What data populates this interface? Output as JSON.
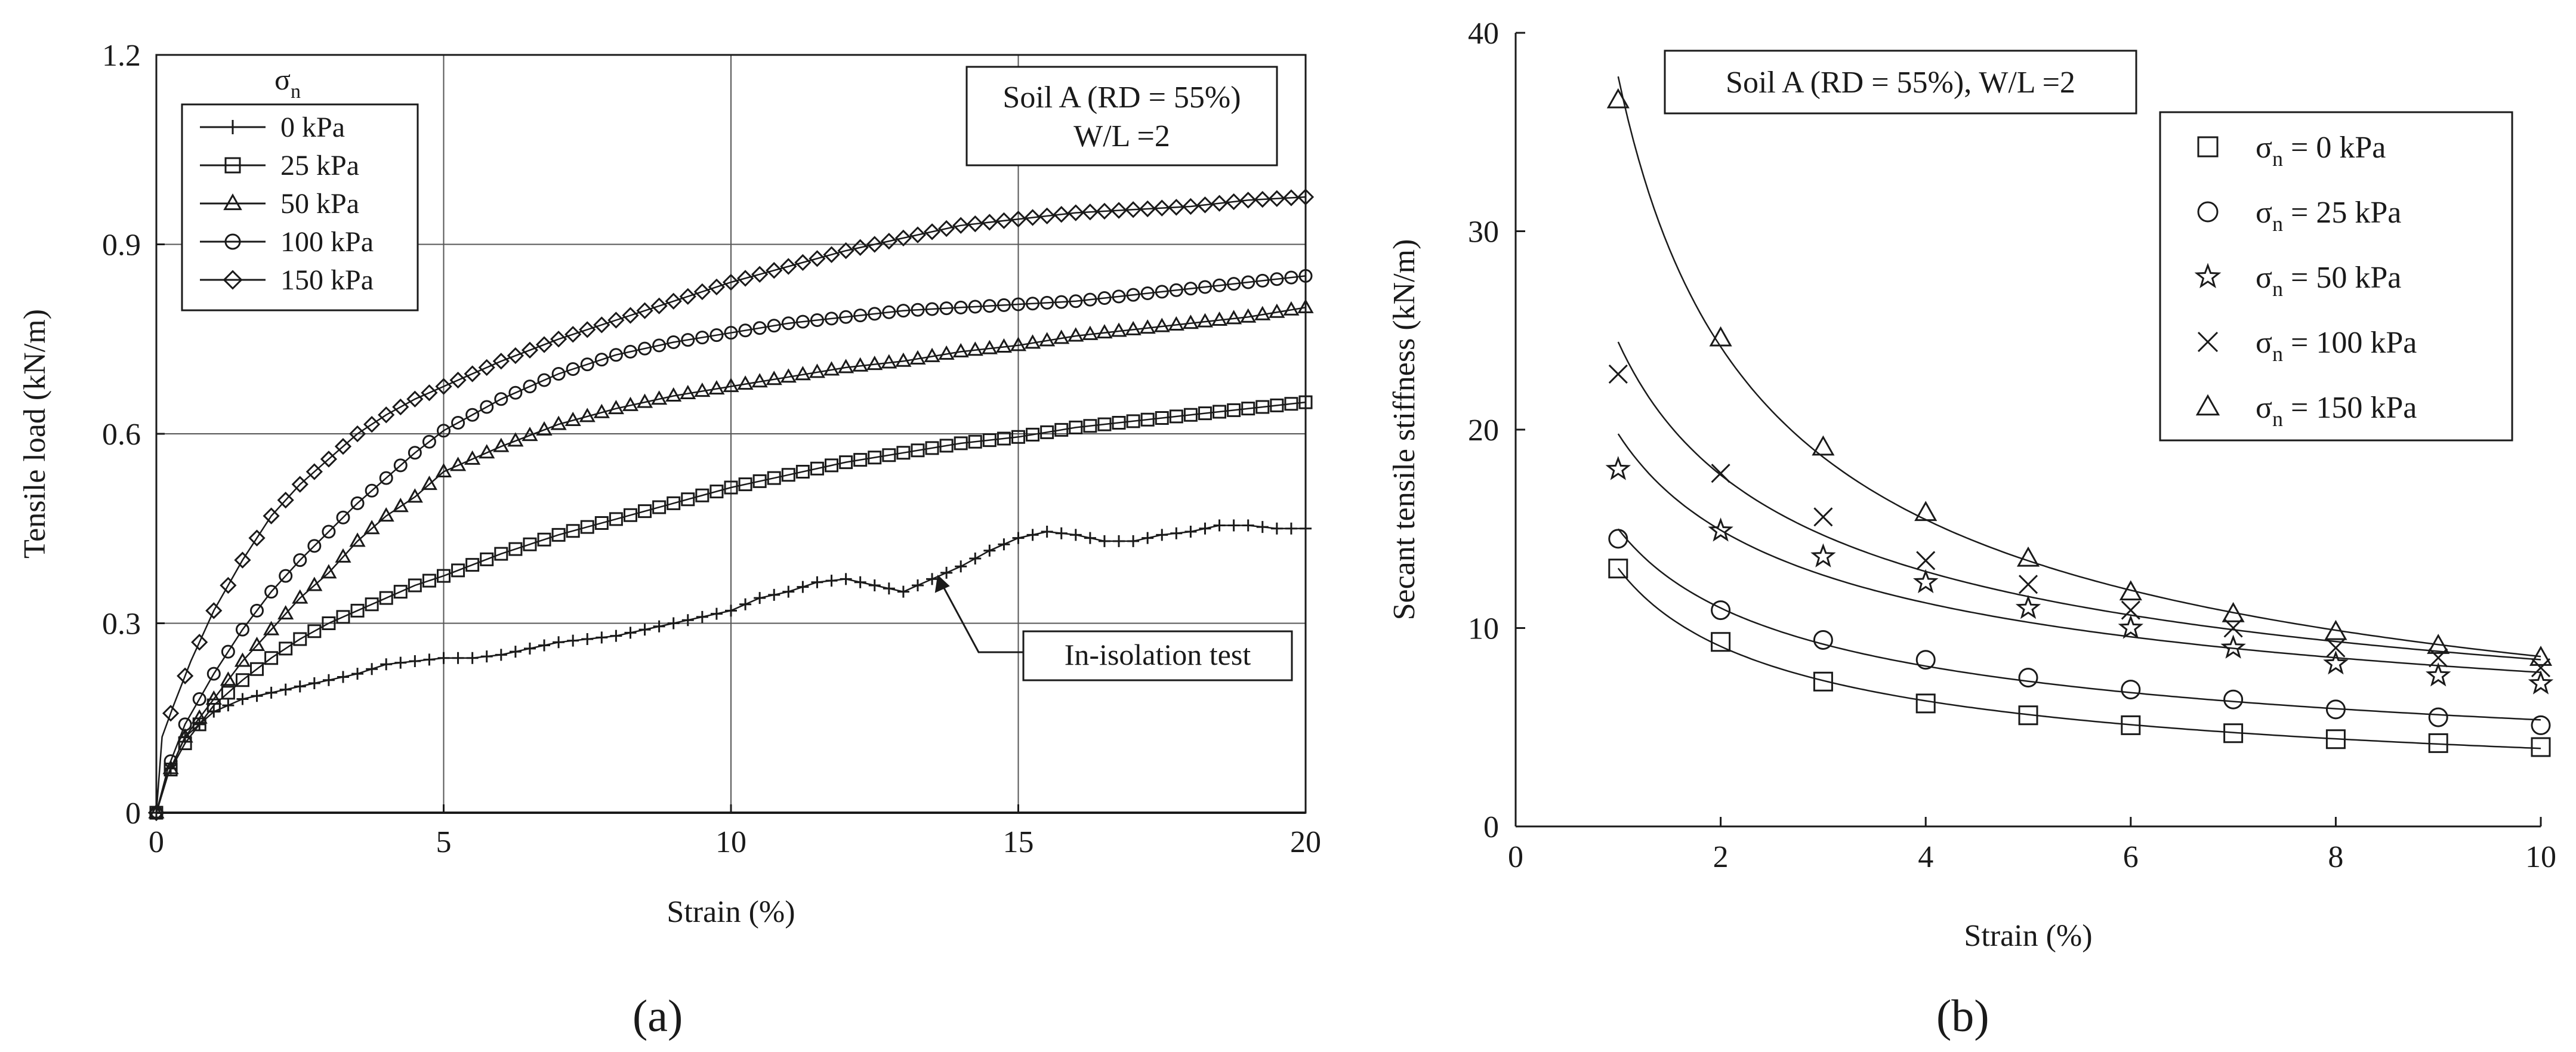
{
  "chart_data": [
    {
      "panel": "(a)",
      "type": "line",
      "xlabel": "Strain (%)",
      "ylabel": "Tensile load (kN/m)",
      "xlim": [
        0,
        20
      ],
      "ylim": [
        0,
        1.2
      ],
      "xticks": [
        "0",
        "5",
        "10",
        "15",
        "20"
      ],
      "yticks": [
        "0",
        "0.3",
        "0.6",
        "0.9",
        "1.2"
      ],
      "grid": true,
      "legend_title": "σn",
      "legend_position": "top-left",
      "info_box": [
        "Soil A (RD = 55%)",
        "W/L =2"
      ],
      "annotation": "In-isolation test",
      "series": [
        {
          "name": "0 kPa",
          "marker": "plus",
          "x": [
            0,
            0.2,
            0.5,
            1,
            1.5,
            2,
            2.5,
            3,
            3.5,
            4,
            4.5,
            5,
            5.5,
            6,
            6.5,
            7,
            7.5,
            8,
            8.5,
            9,
            9.5,
            10,
            10.5,
            11,
            11.5,
            12,
            12.5,
            13,
            13.5,
            14,
            14.5,
            15,
            15.5,
            16,
            16.5,
            17,
            17.5,
            18,
            18.5,
            19,
            19.5,
            20
          ],
          "y": [
            0,
            0.06,
            0.12,
            0.16,
            0.18,
            0.19,
            0.2,
            0.21,
            0.22,
            0.235,
            0.24,
            0.245,
            0.245,
            0.25,
            0.26,
            0.27,
            0.275,
            0.28,
            0.29,
            0.3,
            0.31,
            0.32,
            0.34,
            0.35,
            0.365,
            0.37,
            0.36,
            0.35,
            0.37,
            0.39,
            0.415,
            0.435,
            0.445,
            0.44,
            0.43,
            0.43,
            0.44,
            0.445,
            0.455,
            0.455,
            0.45,
            0.45
          ]
        },
        {
          "name": "25 kPa",
          "marker": "square",
          "x": [
            0,
            0.2,
            0.5,
            1,
            1.5,
            2,
            2.5,
            3,
            3.5,
            4,
            4.5,
            5,
            6,
            7,
            8,
            9,
            10,
            11,
            12,
            13,
            14,
            15,
            16,
            17,
            18,
            19,
            20
          ],
          "y": [
            0,
            0.06,
            0.11,
            0.17,
            0.21,
            0.245,
            0.275,
            0.3,
            0.32,
            0.34,
            0.36,
            0.375,
            0.41,
            0.44,
            0.465,
            0.49,
            0.515,
            0.535,
            0.555,
            0.57,
            0.585,
            0.595,
            0.61,
            0.62,
            0.63,
            0.64,
            0.65
          ]
        },
        {
          "name": "50 kPa",
          "marker": "triangle",
          "x": [
            0,
            0.2,
            0.5,
            1,
            1.5,
            2,
            2.5,
            3,
            3.5,
            4,
            4.5,
            5,
            6,
            7,
            8,
            9,
            10,
            11,
            12,
            13,
            14,
            15,
            16,
            17,
            18,
            19,
            20
          ],
          "y": [
            0,
            0.06,
            0.12,
            0.18,
            0.24,
            0.29,
            0.34,
            0.38,
            0.43,
            0.47,
            0.5,
            0.54,
            0.58,
            0.615,
            0.64,
            0.66,
            0.675,
            0.69,
            0.705,
            0.715,
            0.73,
            0.74,
            0.755,
            0.765,
            0.775,
            0.785,
            0.8
          ]
        },
        {
          "name": "100 kPa",
          "marker": "circle",
          "x": [
            0,
            0.2,
            0.5,
            1,
            1.5,
            2,
            2.5,
            3,
            3.5,
            4,
            4.5,
            5,
            6,
            7,
            8,
            9,
            10,
            11,
            12,
            13,
            14,
            15,
            16,
            17,
            18,
            19,
            20
          ],
          "y": [
            0,
            0.07,
            0.14,
            0.22,
            0.29,
            0.35,
            0.4,
            0.445,
            0.49,
            0.53,
            0.57,
            0.605,
            0.655,
            0.695,
            0.725,
            0.745,
            0.76,
            0.775,
            0.785,
            0.795,
            0.8,
            0.805,
            0.81,
            0.82,
            0.83,
            0.84,
            0.85
          ]
        },
        {
          "name": "150 kPa",
          "marker": "diamond",
          "x": [
            0,
            0.1,
            0.3,
            0.6,
            1,
            1.5,
            2,
            2.5,
            3,
            3.5,
            4,
            4.5,
            5,
            6,
            7,
            8,
            9,
            10,
            11,
            12,
            13,
            14,
            15,
            16,
            17,
            18,
            19,
            20
          ],
          "y": [
            0,
            0.12,
            0.17,
            0.24,
            0.32,
            0.4,
            0.47,
            0.52,
            0.56,
            0.6,
            0.63,
            0.655,
            0.675,
            0.715,
            0.75,
            0.78,
            0.81,
            0.84,
            0.865,
            0.89,
            0.91,
            0.93,
            0.94,
            0.95,
            0.955,
            0.96,
            0.97,
            0.975
          ]
        }
      ]
    },
    {
      "panel": "(b)",
      "type": "scatter",
      "xlabel": "Strain (%)",
      "ylabel": "Secant tensile stiffness (kN/m)",
      "xlim": [
        0,
        10
      ],
      "ylim": [
        0,
        40
      ],
      "xticks": [
        "0",
        "2",
        "4",
        "6",
        "8",
        "10"
      ],
      "yticks": [
        "0",
        "10",
        "20",
        "30",
        "40"
      ],
      "grid": false,
      "legend_position": "top-right",
      "info_box": [
        "Soil A (RD = 55%), W/L =2"
      ],
      "fit": "power",
      "series": [
        {
          "name": "σn = 0 kPa",
          "marker": "square",
          "x": [
            1,
            2,
            3,
            4,
            5,
            6,
            7,
            8,
            9,
            10
          ],
          "y": [
            13.0,
            9.3,
            7.3,
            6.2,
            5.6,
            5.1,
            4.7,
            4.4,
            4.2,
            4.0
          ]
        },
        {
          "name": "σn = 25 kPa",
          "marker": "circle",
          "x": [
            1,
            2,
            3,
            4,
            5,
            6,
            7,
            8,
            9,
            10
          ],
          "y": [
            14.5,
            10.9,
            9.4,
            8.4,
            7.5,
            6.9,
            6.4,
            5.9,
            5.5,
            5.1
          ]
        },
        {
          "name": "σn = 50 kPa",
          "marker": "star",
          "x": [
            1,
            2,
            3,
            4,
            5,
            6,
            7,
            8,
            9,
            10
          ],
          "y": [
            18.0,
            14.9,
            13.6,
            12.3,
            11.0,
            10.0,
            9.0,
            8.2,
            7.6,
            7.2
          ]
        },
        {
          "name": "σn = 100 kPa",
          "marker": "cross",
          "x": [
            1,
            2,
            3,
            4,
            5,
            6,
            7,
            8,
            9,
            10
          ],
          "y": [
            22.8,
            17.8,
            15.6,
            13.4,
            12.2,
            10.9,
            10.0,
            9.0,
            8.5,
            8.0
          ]
        },
        {
          "name": "σn = 150 kPa",
          "marker": "triangle",
          "x": [
            1,
            2,
            3,
            4,
            5,
            6,
            7,
            8,
            9,
            10
          ],
          "y": [
            36.6,
            24.6,
            19.1,
            15.8,
            13.5,
            11.8,
            10.7,
            9.8,
            9.1,
            8.5
          ]
        }
      ]
    }
  ]
}
